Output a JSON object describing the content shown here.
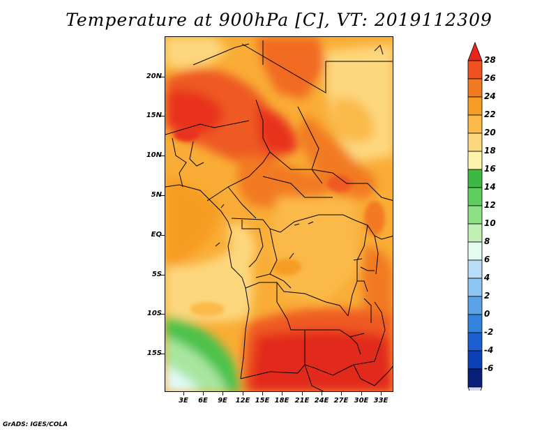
{
  "title": "Temperature at 900hPa [C], VT: 2019112309",
  "footer": "GrADS: IGES/COLA",
  "map": {
    "region": "Central and Southern Africa",
    "y_axis_labels": [
      "20N",
      "15N",
      "10N",
      "5N",
      "EQ",
      "5S",
      "10S",
      "15S"
    ],
    "x_axis_labels": [
      "3E",
      "6E",
      "9E",
      "12E",
      "15E",
      "18E",
      "21E",
      "24E",
      "27E",
      "30E",
      "33E"
    ]
  },
  "colorbar": {
    "labels": [
      "28",
      "26",
      "24",
      "22",
      "20",
      "18",
      "16",
      "14",
      "12",
      "10",
      "8",
      "6",
      "4",
      "2",
      "0",
      "-2",
      "-4",
      "-6"
    ],
    "colors": [
      "#e8261c",
      "#ee5020",
      "#f27a22",
      "#f79c24",
      "#fbb94a",
      "#fdd77e",
      "#fdf3ad",
      "#3cb843",
      "#5fcd5c",
      "#8ee086",
      "#c0f0b4",
      "#e4fbef",
      "#b9ddf7",
      "#8ec5f2",
      "#5aa3e6",
      "#3384dd",
      "#1b5fd0",
      "#0d3fb5",
      "#0a1f7a",
      "#d6d8f0"
    ]
  },
  "colors": {
    "hot": "#e01c10",
    "warm": "#f4801f",
    "mild": "#f9ac32",
    "cool": "#fde08a",
    "green": "#4cc24b",
    "pale_green": "#a8e6a0",
    "pale_blue": "#e0faf8"
  }
}
